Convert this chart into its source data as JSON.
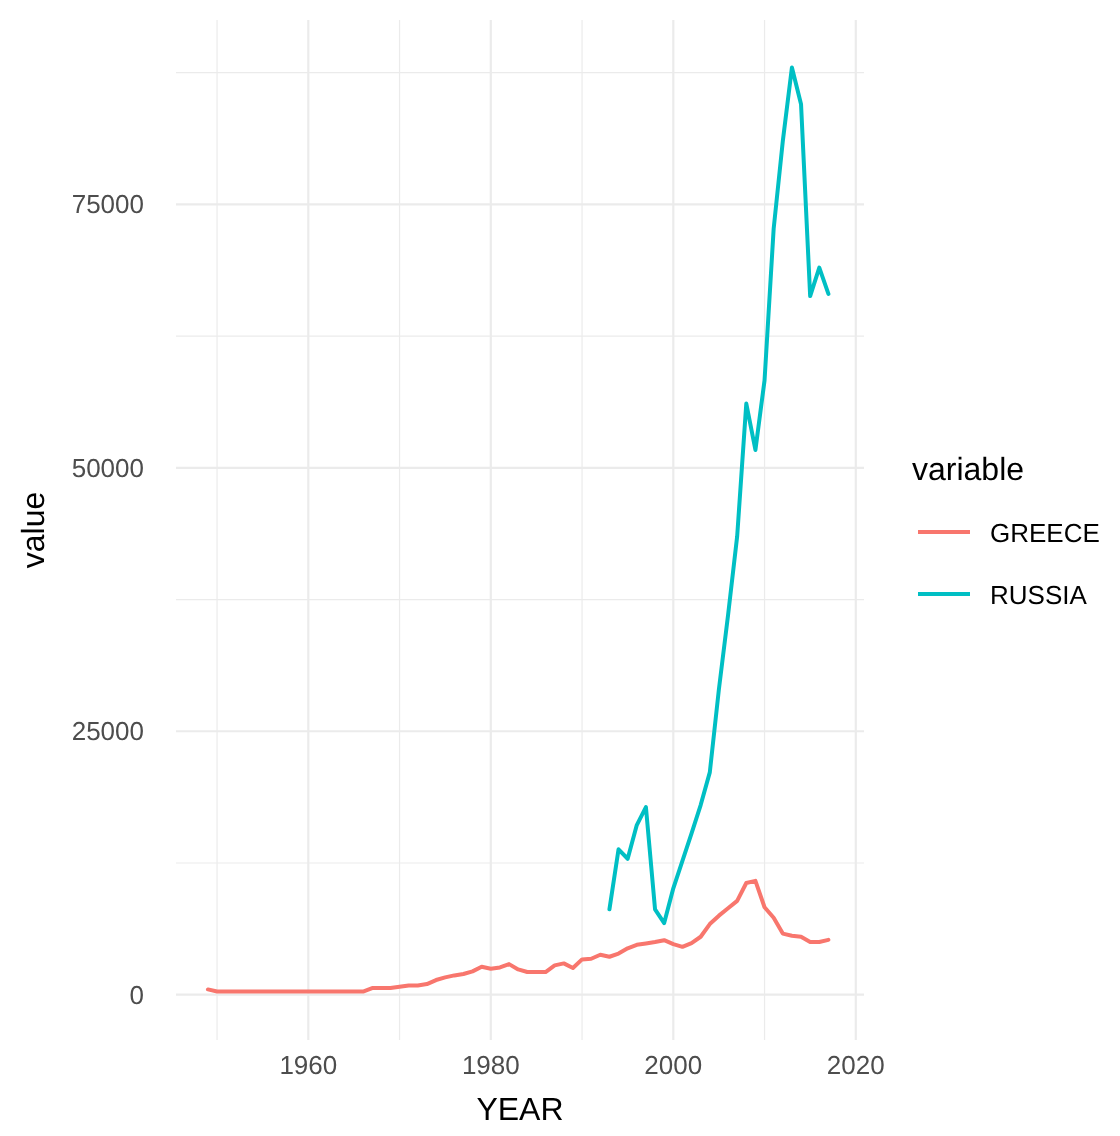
{
  "chart_data": {
    "type": "line",
    "xlabel": "YEAR",
    "ylabel": "value",
    "legend_title": "variable",
    "legend": "right",
    "grid": true,
    "line_style": "solid",
    "xlim": [
      1945.5,
      2020.9
    ],
    "xticks": [
      {
        "value": 1950,
        "label": null
      },
      1960,
      {
        "value": 1970,
        "label": null
      },
      1980,
      {
        "value": 1990,
        "label": null
      },
      2000,
      {
        "value": 2010,
        "label": null
      },
      2020
    ],
    "ylim": [
      -4300,
      92500
    ],
    "yticks": [
      0,
      {
        "value": 12500,
        "label": null
      },
      25000,
      {
        "value": 37500,
        "label": null
      },
      50000,
      {
        "value": 62500,
        "label": null
      },
      75000,
      {
        "value": 87500,
        "label": null
      }
    ],
    "series": [
      {
        "name": "GREECE",
        "color": "#f8766d",
        "x": [
          1949,
          1950,
          1951,
          1952,
          1953,
          1954,
          1955,
          1956,
          1957,
          1958,
          1959,
          1960,
          1961,
          1962,
          1963,
          1964,
          1965,
          1966,
          1967,
          1968,
          1969,
          1970,
          1971,
          1972,
          1973,
          1974,
          1975,
          1976,
          1977,
          1978,
          1979,
          1980,
          1981,
          1982,
          1983,
          1984,
          1985,
          1986,
          1987,
          1988,
          1989,
          1990,
          1991,
          1992,
          1993,
          1994,
          1995,
          1996,
          1997,
          1998,
          1999,
          2000,
          2001,
          2002,
          2003,
          2004,
          2005,
          2006,
          2007,
          2008,
          2009,
          2010,
          2011,
          2012,
          2013,
          2014,
          2015,
          2016,
          2017
        ],
        "values": [
          500,
          300,
          300,
          300,
          300,
          300,
          300,
          300,
          300,
          300,
          300,
          300,
          300,
          300,
          300,
          300,
          300,
          300,
          630,
          630,
          630,
          760,
          880,
          880,
          1010,
          1390,
          1640,
          1830,
          1960,
          2210,
          2650,
          2460,
          2590,
          2900,
          2400,
          2150,
          2150,
          2150,
          2780,
          2970,
          2530,
          3350,
          3410,
          3790,
          3600,
          3900,
          4400,
          4730,
          4860,
          5000,
          5170,
          4800,
          4540,
          4900,
          5500,
          6700,
          7500,
          8200,
          8900,
          10600,
          10800,
          8300,
          7300,
          5800,
          5600,
          5500,
          5000,
          5000,
          5200
        ]
      },
      {
        "name": "RUSSIA",
        "color": "#00bfc4",
        "x": [
          1993,
          1994,
          1995,
          1996,
          1997,
          1998,
          1999,
          2000,
          2001,
          2002,
          2003,
          2004,
          2005,
          2006,
          2007,
          2008,
          2009,
          2010,
          2011,
          2012,
          2013,
          2014,
          2015,
          2016,
          2017
        ],
        "values": [
          8100,
          13800,
          12900,
          16100,
          17800,
          8100,
          6800,
          10100,
          12700,
          15300,
          18000,
          21100,
          29000,
          36000,
          43500,
          56100,
          51700,
          58300,
          72700,
          81000,
          88000,
          84500,
          66300,
          69000,
          66500
        ]
      }
    ]
  }
}
